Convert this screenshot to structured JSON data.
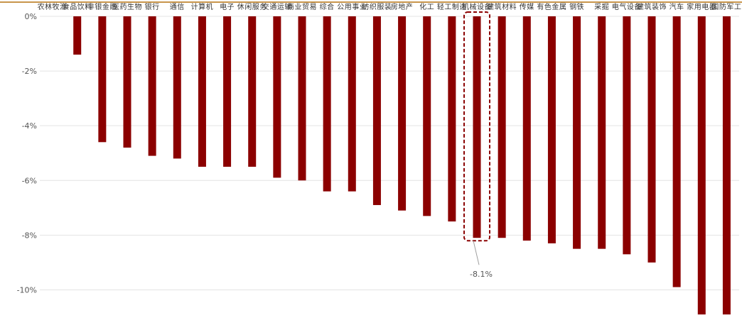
{
  "colors": {
    "top_rule": "#c8954b",
    "bar": "#8b0000",
    "grid": "#e3e3e3",
    "highlight_box": "#8b0000",
    "callout_line": "#a0a0a0",
    "tick_text": "#555555",
    "category_text": "#333333"
  },
  "chart_data": {
    "type": "bar",
    "title": "",
    "xlabel": "",
    "ylabel": "",
    "categories": [
      "农林牧渔",
      "食品饮料",
      "非银金融",
      "医药生物",
      "银行",
      "通信",
      "计算机",
      "电子",
      "休闲服务",
      "交通运输",
      "商业贸易",
      "综合",
      "公用事业",
      "纺织服装",
      "房地产",
      "化工",
      "轻工制造",
      "机械设备",
      "建筑材料",
      "传媒",
      "有色金属",
      "钢铁",
      "采掘",
      "电气设备",
      "建筑装饰",
      "汽车",
      "家用电器",
      "国防军工"
    ],
    "values": [
      0.0,
      -1.4,
      -4.6,
      -4.8,
      -5.1,
      -5.2,
      -5.5,
      -5.5,
      -5.5,
      -5.9,
      -6.0,
      -6.4,
      -6.4,
      -6.9,
      -7.1,
      -7.3,
      -7.5,
      -8.1,
      -8.1,
      -8.2,
      -8.3,
      -8.5,
      -8.5,
      -8.7,
      -9.0,
      -9.9,
      -10.9,
      -10.9
    ],
    "ylim": [
      -11,
      0
    ],
    "yticks": [
      0,
      -2,
      -4,
      -6,
      -8,
      -10
    ],
    "ytick_labels": [
      "0%",
      "-2%",
      "-4%",
      "-6%",
      "-8%",
      "-10%"
    ],
    "highlight": {
      "category": "机械设备",
      "label": "-8.1%"
    },
    "grid": true,
    "legend": "none"
  }
}
